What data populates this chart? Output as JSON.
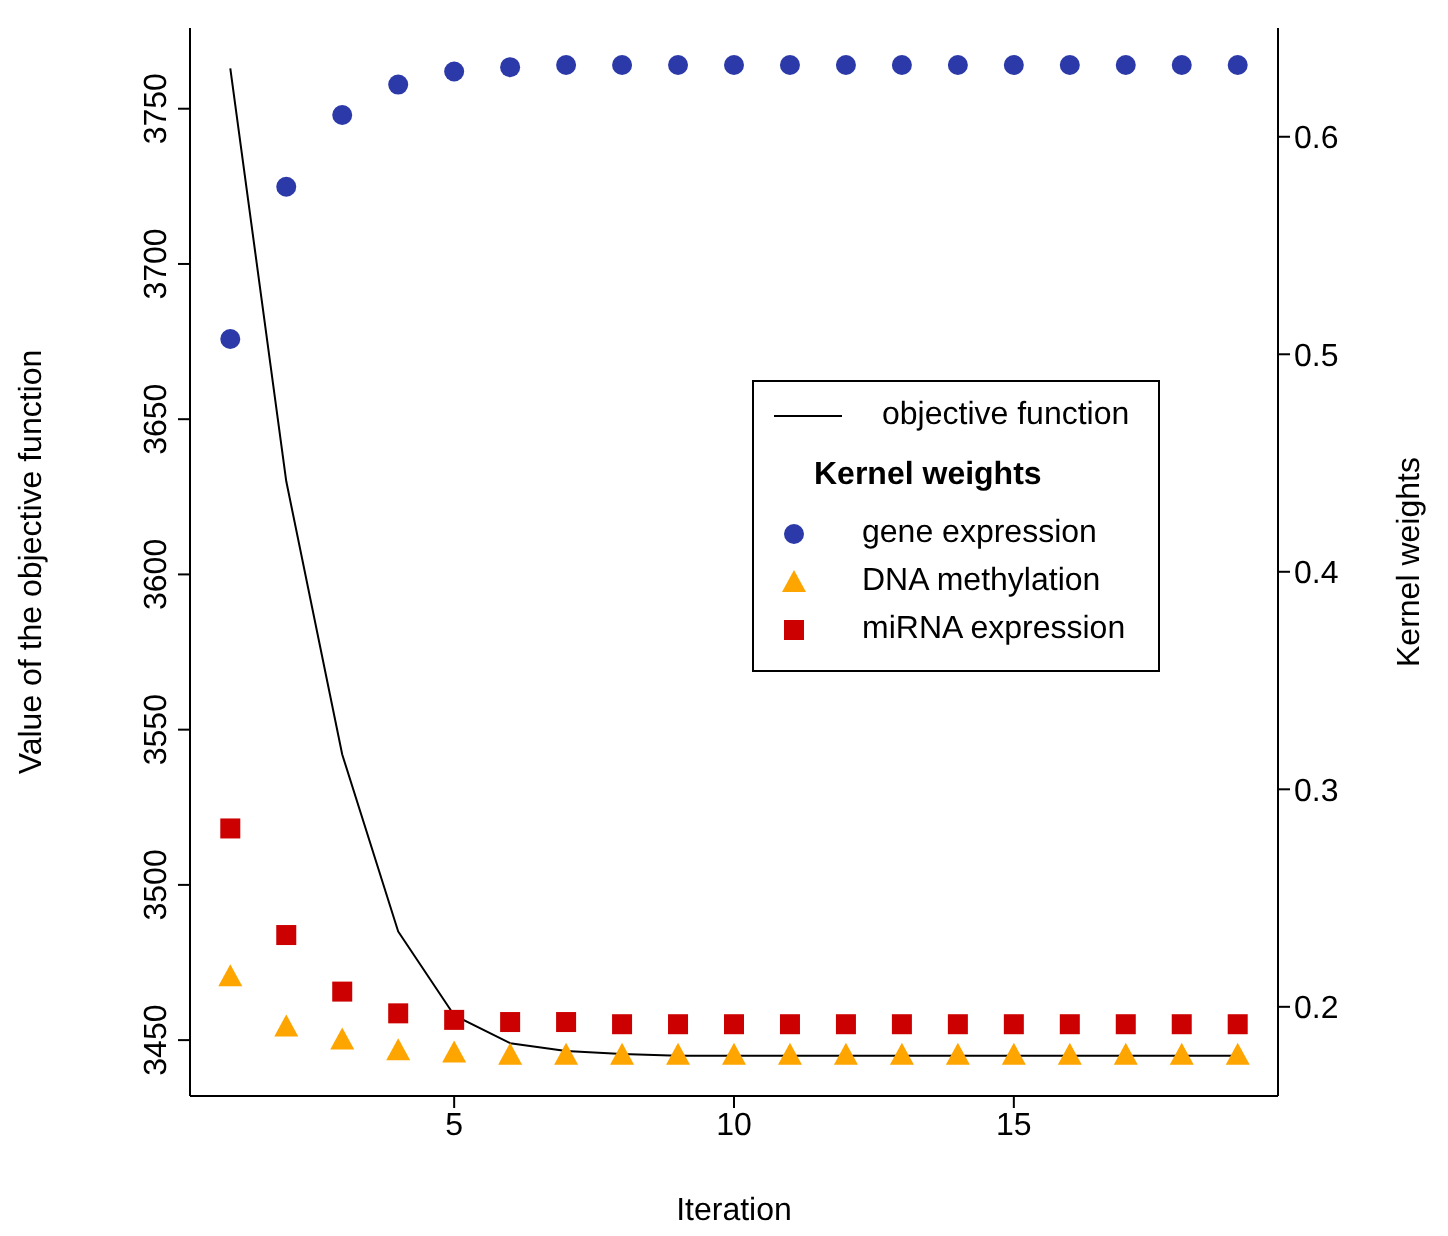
{
  "chart_data": {
    "type": "scatter",
    "xlabel": "Iteration",
    "ylabel": "Value of the objective function",
    "y2label": "Kernel weights",
    "legend_title": "Kernel weights",
    "legend": "right",
    "grid": false,
    "x": [
      1,
      2,
      3,
      4,
      5,
      6,
      7,
      8,
      9,
      10,
      11,
      12,
      13,
      14,
      15,
      16,
      17,
      18,
      19
    ],
    "xlim": [
      0.28,
      19.72
    ],
    "xticks": [
      5,
      10,
      15
    ],
    "ylim": [
      3432,
      3776
    ],
    "yticks": [
      3450,
      3500,
      3550,
      3600,
      3650,
      3700,
      3750
    ],
    "y2lim": [
      0.159,
      0.65
    ],
    "y2ticks": [
      0.2,
      0.3,
      0.4,
      0.5,
      0.6
    ],
    "series": [
      {
        "name": "objective function",
        "type": "line",
        "marker": "none",
        "color": "#000000",
        "values": [
          3763,
          3630,
          3542,
          3485,
          3458,
          3449,
          3446.5,
          3445.5,
          3445,
          3445,
          3445,
          3445,
          3445,
          3445,
          3445,
          3445,
          3445,
          3445,
          3445
        ]
      },
      {
        "name": "gene expression",
        "axis": "y2",
        "marker": "circle",
        "color": "#2b3aa8",
        "values": [
          0.507,
          0.577,
          0.61,
          0.624,
          0.63,
          0.632,
          0.633,
          0.633,
          0.633,
          0.633,
          0.633,
          0.633,
          0.633,
          0.633,
          0.633,
          0.633,
          0.633,
          0.633,
          0.633
        ]
      },
      {
        "name": "DNA methylation",
        "axis": "y2",
        "marker": "triangle",
        "color": "#ffa500",
        "values": [
          0.214,
          0.191,
          0.185,
          0.18,
          0.179,
          0.178,
          0.178,
          0.178,
          0.178,
          0.178,
          0.178,
          0.178,
          0.178,
          0.178,
          0.178,
          0.178,
          0.178,
          0.178,
          0.178
        ]
      },
      {
        "name": "miRNA expression",
        "axis": "y2",
        "marker": "square",
        "color": "#cc0000",
        "values": [
          0.282,
          0.233,
          0.207,
          0.197,
          0.194,
          0.193,
          0.193,
          0.192,
          0.192,
          0.192,
          0.192,
          0.192,
          0.192,
          0.192,
          0.192,
          0.192,
          0.192,
          0.192,
          0.192
        ]
      }
    ]
  }
}
